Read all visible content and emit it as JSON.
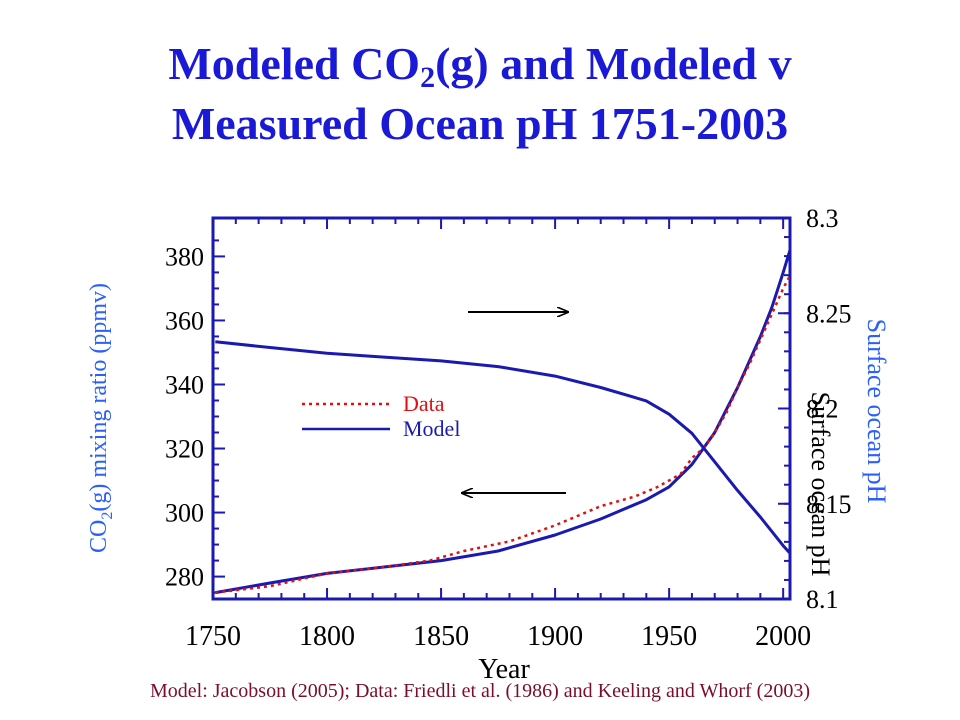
{
  "slide": {
    "title_line1_part1": "Modeled CO",
    "title_line1_sub": "2",
    "title_line1_part2": "(g) and Modeled v",
    "title_line2": "Measured Ocean pH 1751-2003",
    "footer": "Model: Jacobson (2005); Data: Friedli et al. (1986) and Keeling and Whorf (2003)"
  },
  "colors": {
    "title": "#1a1ad6",
    "axis_label": "#2b60ff",
    "model": "#1a1ab0",
    "data": "#e01010",
    "footer": "#7b0d2a"
  },
  "chart_data": {
    "type": "line",
    "xlabel": "Year",
    "ylabel_left_prefix": "CO",
    "ylabel_left_sub": "2",
    "ylabel_left_suffix": "(g) mixing ratio (ppmv)",
    "ylabel_right": "Surface ocean pH",
    "inner_right_label": "Surface ocean pH",
    "xlim": [
      1750,
      2003
    ],
    "ylim_left": [
      273,
      392
    ],
    "ylim_right": [
      8.1,
      8.3
    ],
    "x_ticks": [
      "1750",
      "1800",
      "1850",
      "1900",
      "1950",
      "2000"
    ],
    "y_left_ticks": [
      "280",
      "300",
      "320",
      "340",
      "360",
      "380"
    ],
    "y_right_ticks": [
      "8.1",
      "8.15",
      "8.2",
      "8.25",
      "8.3"
    ],
    "grid": false,
    "legend": {
      "position": "center-left",
      "entries": [
        "Data",
        "Model"
      ]
    },
    "series": [
      {
        "name": "Model",
        "axis": "left",
        "style": "solid",
        "x": [
          1751,
          1775,
          1800,
          1825,
          1850,
          1875,
          1900,
          1920,
          1940,
          1950,
          1960,
          1970,
          1980,
          1990,
          1995,
          2000,
          2003
        ],
        "y": [
          275,
          278,
          281,
          283,
          285,
          288,
          293,
          298,
          304,
          308,
          315,
          325,
          339,
          355,
          364,
          375,
          382
        ]
      },
      {
        "name": "Data",
        "axis": "left",
        "style": "dotted",
        "x": [
          1751,
          1775,
          1800,
          1825,
          1845,
          1860,
          1880,
          1900,
          1920,
          1935,
          1945,
          1955,
          1960,
          1965,
          1970,
          1975,
          1980,
          1985,
          1990,
          1995,
          2000,
          2003
        ],
        "y": [
          275,
          277,
          281,
          283,
          285,
          288,
          291,
          296,
          302,
          305,
          308,
          312,
          317,
          320,
          325,
          331,
          339,
          346,
          354,
          362,
          370,
          374
        ]
      },
      {
        "name": "Model",
        "axis": "right",
        "style": "solid",
        "x": [
          1751,
          1775,
          1800,
          1825,
          1850,
          1875,
          1900,
          1920,
          1940,
          1950,
          1960,
          1970,
          1980,
          1990,
          2000,
          2003
        ],
        "y": [
          8.235,
          8.232,
          8.229,
          8.227,
          8.225,
          8.222,
          8.217,
          8.211,
          8.204,
          8.197,
          8.187,
          8.172,
          8.157,
          8.143,
          8.128,
          8.124
        ]
      }
    ],
    "annotations": [
      {
        "type": "arrow",
        "direction": "right",
        "refers_to": "right-axis"
      },
      {
        "type": "arrow",
        "direction": "left",
        "refers_to": "left-axis"
      }
    ]
  }
}
